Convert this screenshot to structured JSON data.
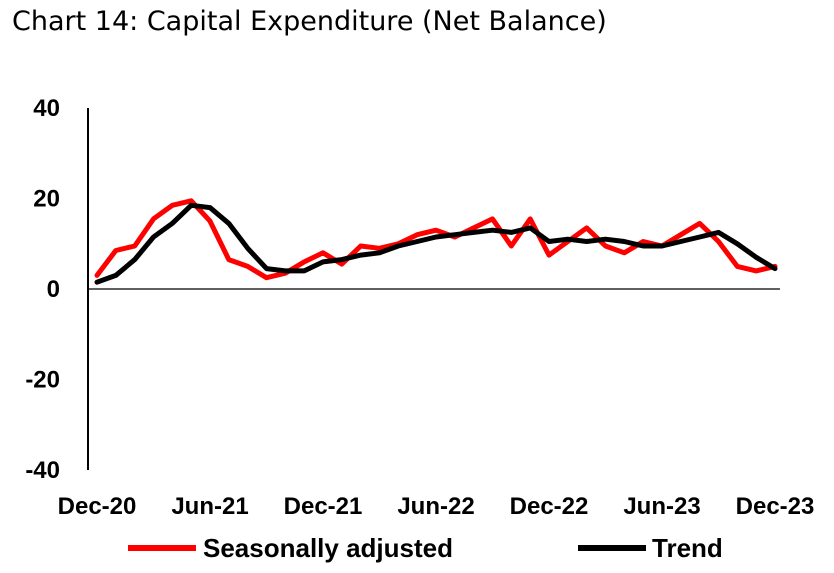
{
  "chart_data": {
    "type": "line",
    "title": "Chart 14: Capital Expenditure (Net Balance)",
    "xlabel": "",
    "ylabel": "",
    "ylim": [
      -40,
      40
    ],
    "yticks": [
      "40",
      "20",
      "0",
      "-20",
      "-40"
    ],
    "x_tick_labels": [
      "Dec-20",
      "Jun-21",
      "Dec-21",
      "Jun-22",
      "Dec-22",
      "Jun-23",
      "Dec-23"
    ],
    "x_tick_indices": [
      0,
      6,
      12,
      18,
      24,
      30,
      36
    ],
    "x": [
      "Dec-20",
      "Jan-21",
      "Feb-21",
      "Mar-21",
      "Apr-21",
      "May-21",
      "Jun-21",
      "Jul-21",
      "Aug-21",
      "Sep-21",
      "Oct-21",
      "Nov-21",
      "Dec-21",
      "Jan-22",
      "Feb-22",
      "Mar-22",
      "Apr-22",
      "May-22",
      "Jun-22",
      "Jul-22",
      "Aug-22",
      "Sep-22",
      "Oct-22",
      "Nov-22",
      "Dec-22",
      "Jan-23",
      "Feb-23",
      "Mar-23",
      "Apr-23",
      "May-23",
      "Jun-23",
      "Jul-23",
      "Aug-23",
      "Sep-23",
      "Oct-23",
      "Nov-23",
      "Dec-23"
    ],
    "series": [
      {
        "name": "Seasonally adjusted",
        "color": "#ff0000",
        "values": [
          3,
          8.5,
          9.5,
          15.5,
          18.5,
          19.5,
          15,
          6.5,
          5,
          2.5,
          3.5,
          6,
          8,
          5.5,
          9.5,
          9,
          10,
          12,
          13,
          11.5,
          13.5,
          15.5,
          9.5,
          15.5,
          7.5,
          10.5,
          13.5,
          9.5,
          8,
          10.5,
          9.5,
          12,
          14.5,
          10.5,
          5,
          4,
          5
        ]
      },
      {
        "name": "Trend",
        "color": "#000000",
        "values": [
          1.5,
          3,
          6.5,
          11.5,
          14.5,
          18.5,
          18,
          14.5,
          9,
          4.5,
          4,
          4,
          6,
          6.5,
          7.5,
          8,
          9.5,
          10.5,
          11.5,
          12,
          12.5,
          13,
          12.5,
          13.5,
          10.5,
          11,
          10.5,
          11,
          10.5,
          9.5,
          9.5,
          10.5,
          11.5,
          12.5,
          10,
          7,
          4.5
        ]
      }
    ],
    "grid": false,
    "legend_position": "bottom"
  }
}
